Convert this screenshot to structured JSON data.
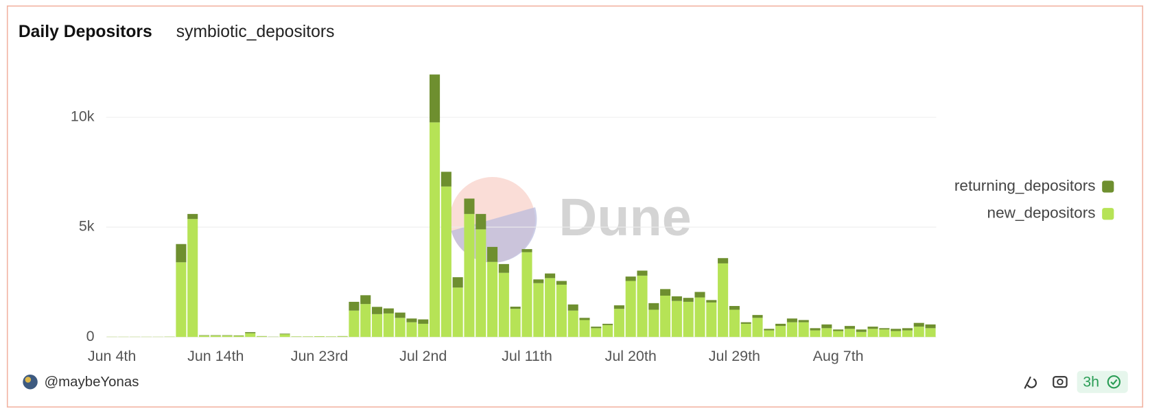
{
  "chart_data": {
    "type": "bar",
    "stacked": true,
    "title": "Daily Depositors",
    "subtitle": "symbiotic_depositors",
    "watermark": "Dune",
    "categories": [
      "Jun 4th",
      null,
      null,
      null,
      null,
      null,
      null,
      null,
      null,
      "Jun 14th",
      null,
      null,
      null,
      null,
      null,
      null,
      null,
      null,
      "Jun 23rd",
      null,
      null,
      null,
      null,
      null,
      null,
      null,
      null,
      "Jul 2nd",
      null,
      null,
      null,
      null,
      null,
      null,
      null,
      null,
      "Jul 11th",
      null,
      null,
      null,
      null,
      null,
      null,
      null,
      null,
      "Jul 20th",
      null,
      null,
      null,
      null,
      null,
      null,
      null,
      null,
      "Jul 29th",
      null,
      null,
      null,
      null,
      null,
      null,
      null,
      null,
      "Aug 7th",
      null,
      null,
      null,
      null,
      null,
      null,
      null,
      null
    ],
    "series": [
      {
        "name": "returning_depositors",
        "color": "#6e8f2f",
        "values": [
          2,
          2,
          2,
          2,
          2,
          3,
          830,
          230,
          20,
          20,
          20,
          20,
          50,
          10,
          5,
          30,
          5,
          5,
          5,
          5,
          10,
          400,
          400,
          330,
          230,
          240,
          170,
          200,
          2180,
          670,
          470,
          700,
          700,
          680,
          400,
          100,
          140,
          170,
          210,
          170,
          280,
          100,
          70,
          60,
          160,
          200,
          230,
          300,
          300,
          210,
          180,
          250,
          110,
          240,
          170,
          70,
          130,
          70,
          100,
          170,
          100,
          100,
          170,
          70,
          130,
          110,
          100,
          60,
          100,
          100,
          170,
          170
        ]
      },
      {
        "name": "new_depositors",
        "color": "#b6e356",
        "values": [
          10,
          10,
          10,
          10,
          10,
          15,
          3400,
          5370,
          60,
          60,
          60,
          50,
          170,
          30,
          10,
          120,
          20,
          20,
          30,
          20,
          30,
          1200,
          1500,
          1040,
          1070,
          870,
          670,
          600,
          9770,
          6850,
          2250,
          5600,
          4900,
          3420,
          2920,
          1280,
          3860,
          2450,
          2680,
          2380,
          1200,
          770,
          400,
          540,
          1280,
          2550,
          2790,
          1240,
          1880,
          1640,
          1600,
          1800,
          1570,
          3350,
          1240,
          600,
          870,
          300,
          500,
          670,
          670,
          300,
          400,
          270,
          370,
          230,
          370,
          340,
          270,
          300,
          470,
          400
        ]
      }
    ],
    "ylim": [
      0,
      12000
    ],
    "yticks": [
      0,
      {
        "value": 5000,
        "label": "5k"
      },
      {
        "value": 10000,
        "label": "10k"
      }
    ],
    "grid": true,
    "legend": "right"
  },
  "footer": {
    "author": "@maybeYonas",
    "age": "3h"
  }
}
